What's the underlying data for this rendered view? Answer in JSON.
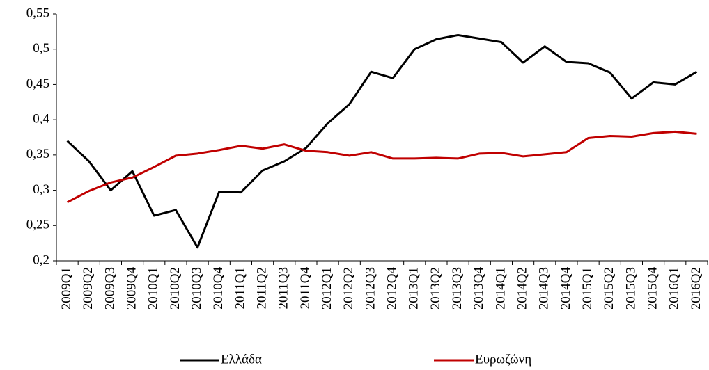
{
  "chart_data": {
    "type": "line",
    "categories": [
      "2009Q1",
      "2009Q2",
      "2009Q3",
      "2009Q4",
      "2010Q1",
      "2010Q2",
      "2010Q3",
      "2010Q4",
      "2011Q1",
      "2011Q2",
      "2011Q3",
      "2011Q4",
      "2012Q1",
      "2012Q2",
      "2012Q3",
      "2012Q4",
      "2013Q1",
      "2013Q2",
      "2013Q3",
      "2013Q4",
      "2014Q1",
      "2014Q2",
      "2014Q3",
      "2014Q4",
      "2015Q1",
      "2015Q2",
      "2015Q3",
      "2015Q4",
      "2016Q1",
      "2016Q2"
    ],
    "series": [
      {
        "name": "Ελλάδα",
        "color": "#000000",
        "values": [
          0.37,
          0.341,
          0.3,
          0.327,
          0.264,
          0.272,
          0.219,
          0.298,
          0.297,
          0.328,
          0.341,
          0.36,
          0.395,
          0.422,
          0.468,
          0.459,
          0.5,
          0.514,
          0.52,
          0.515,
          0.51,
          0.481,
          0.504,
          0.482,
          0.48,
          0.467,
          0.43,
          0.453,
          0.45,
          0.468
        ]
      },
      {
        "name": "Ευρωζώνη",
        "color": "#c00000",
        "values": [
          0.283,
          0.299,
          0.311,
          0.318,
          0.333,
          0.349,
          0.352,
          0.357,
          0.363,
          0.359,
          0.365,
          0.356,
          0.354,
          0.349,
          0.354,
          0.345,
          0.345,
          0.346,
          0.345,
          0.352,
          0.353,
          0.348,
          0.351,
          0.354,
          0.374,
          0.377,
          0.376,
          0.381,
          0.383,
          0.38
        ]
      }
    ],
    "ylim": [
      0.2,
      0.55
    ],
    "yticks": [
      {
        "value": 0.2,
        "label": "0,2"
      },
      {
        "value": 0.25,
        "label": "0,25"
      },
      {
        "value": 0.3,
        "label": "0,3"
      },
      {
        "value": 0.35,
        "label": "0,35"
      },
      {
        "value": 0.4,
        "label": "0,4"
      },
      {
        "value": 0.45,
        "label": "0,45"
      },
      {
        "value": 0.5,
        "label": "0,5"
      },
      {
        "value": 0.55,
        "label": "0,55"
      }
    ],
    "grid": false,
    "legend": "bottom"
  }
}
